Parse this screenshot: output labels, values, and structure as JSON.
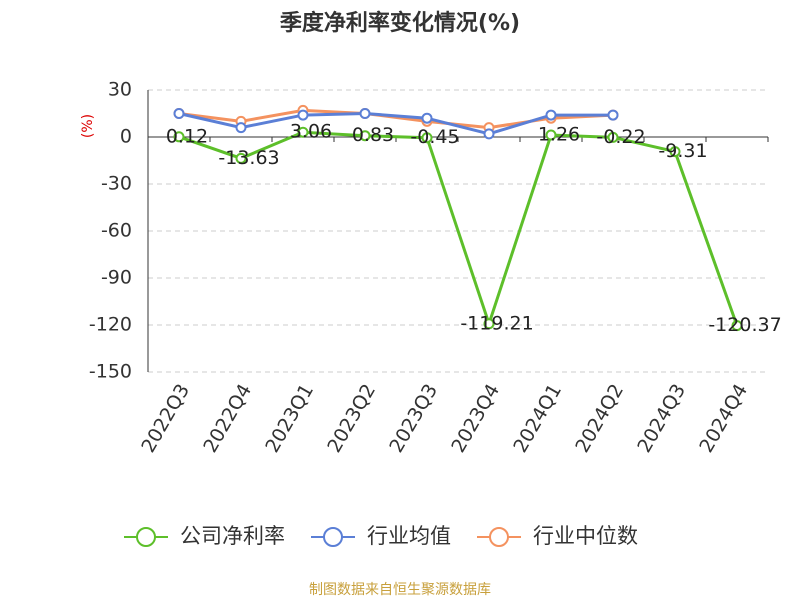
{
  "chart_data": {
    "type": "line",
    "title": "季度净利率变化情况(%)",
    "y_label": "(%)",
    "categories": [
      "2022Q3",
      "2022Q4",
      "2023Q1",
      "2023Q2",
      "2023Q3",
      "2023Q4",
      "2024Q1",
      "2024Q2",
      "2024Q3",
      "2024Q4"
    ],
    "series": [
      {
        "name": "公司净利率",
        "color": "#5dbf2a",
        "values": [
          0.12,
          -13.63,
          3.06,
          0.83,
          -0.45,
          -119.21,
          1.26,
          -0.22,
          -9.31,
          -120.37
        ]
      },
      {
        "name": "行业均值",
        "color": "#5b7fd6",
        "values": [
          15,
          6,
          14,
          15,
          12,
          2,
          14,
          14,
          null,
          null
        ]
      },
      {
        "name": "行业中位数",
        "color": "#f4925f",
        "values": [
          15,
          10,
          17,
          15,
          10,
          6,
          12,
          14,
          null,
          null
        ]
      }
    ],
    "ylim": [
      -150,
      30
    ],
    "yticks": [
      -150,
      -120,
      -90,
      -60,
      -30,
      0,
      30
    ],
    "grid": true,
    "source": "制图数据来自恒生聚源数据库"
  }
}
